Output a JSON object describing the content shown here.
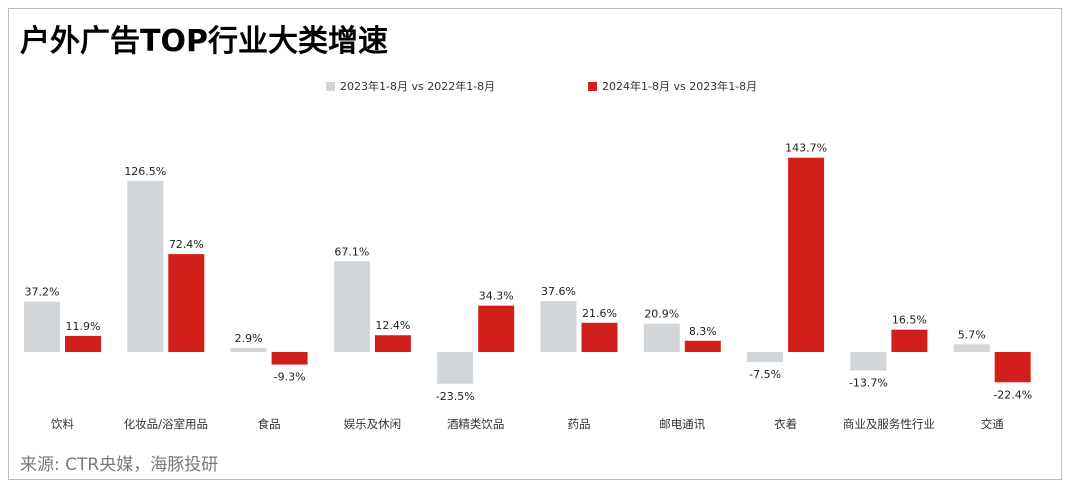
{
  "title": "户外广告TOP行业大类增速",
  "source": "来源: CTR央媒，海豚投研",
  "colors": {
    "series_2023": "#d2d6d9",
    "series_2024": "#d21f1b"
  },
  "chart_data": {
    "type": "bar",
    "categories": [
      "饮料",
      "化妆品/浴室用品",
      "食品",
      "娱乐及休闲",
      "酒精类饮品",
      "药品",
      "邮电通讯",
      "衣着",
      "商业及服务性行业",
      "交通"
    ],
    "series": [
      {
        "name": "2023年1-8月 vs 2022年1-8月",
        "values": [
          37.2,
          126.5,
          2.9,
          67.1,
          -23.5,
          37.6,
          20.9,
          -7.5,
          -13.7,
          5.7
        ],
        "labels": [
          "37.2%",
          "126.5%",
          "2.9%",
          "67.1%",
          "-23.5%",
          "37.6%",
          "20.9%",
          "-7.5%",
          "-13.7%",
          "5.7%"
        ]
      },
      {
        "name": "2024年1-8月 vs 2023年1-8月",
        "values": [
          11.9,
          72.4,
          -9.3,
          12.4,
          34.3,
          21.6,
          8.3,
          143.7,
          16.5,
          -22.4
        ],
        "labels": [
          "11.9%",
          "72.4%",
          "-9.3%",
          "12.4%",
          "34.3%",
          "21.6%",
          "8.3%",
          "143.7%",
          "16.5%",
          "-22.4%"
        ]
      }
    ],
    "unit": "%",
    "legend_position": "top-center",
    "grid": false
  }
}
